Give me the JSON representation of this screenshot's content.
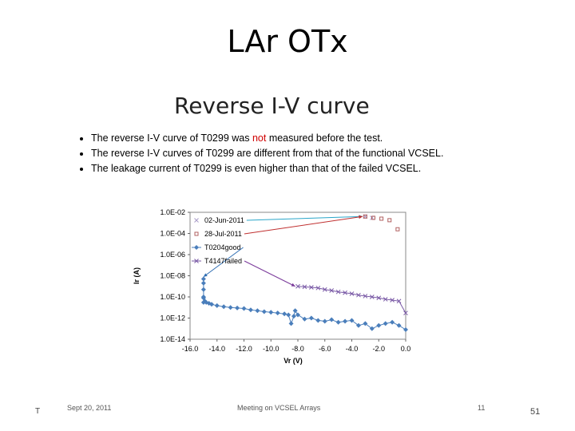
{
  "slide": {
    "title": "LAr OTx",
    "page_number": "51",
    "corner_mark": "T"
  },
  "inner_slide": {
    "title": "Reverse I-V curve",
    "bullets": [
      {
        "before": "The reverse I-V curve of T0299 was ",
        "highlight": "not",
        "after": " measured before the test."
      },
      {
        "before": "The reverse I-V curves of T0299 are different from that of the functional VCSEL.",
        "highlight": "",
        "after": ""
      },
      {
        "before": "The leakage current of T0299 is even higher than that of the failed VCSEL.",
        "highlight": "",
        "after": ""
      }
    ],
    "footer": {
      "date": "Sept 20, 2011",
      "meeting": "Meeting on VCSEL Arrays",
      "page": "11"
    },
    "highlight_color": "#d00000"
  },
  "chart_data": {
    "type": "scatter",
    "xlabel": "Vr (V)",
    "ylabel": "Ir (A)",
    "xlim": [
      -16.0,
      0.0
    ],
    "ylim_log10": [
      -14,
      -2
    ],
    "log_y": true,
    "grid": false,
    "x_ticks": [
      "-16.0",
      "-14.0",
      "-12.0",
      "-10.0",
      "-8.0",
      "-6.0",
      "-4.0",
      "-2.0",
      "0.0"
    ],
    "y_ticks": [
      "1.0E-02",
      "1.0E-04",
      "1.0E-06",
      "1.0E-08",
      "1.0E-10",
      "1.0E-12",
      "1.0E-14"
    ],
    "legend_placement": "top-left",
    "series": [
      {
        "name": "02-Jun-2011",
        "marker": "x",
        "color": "#a89cc8",
        "x": [
          -3.0,
          -2.5
        ],
        "y": [
          0.004,
          0.003
        ]
      },
      {
        "name": "28-Jul-2011",
        "marker": "square",
        "color": "#b06060",
        "x": [
          -3.0,
          -2.4,
          -1.8,
          -1.2,
          -0.6
        ],
        "y": [
          0.004,
          0.003,
          0.0025,
          0.0018,
          0.00025
        ]
      },
      {
        "name": "T0204good",
        "marker": "diamond",
        "color": "#4a7ebb",
        "line": true,
        "x": [
          -15.0,
          -15.0,
          -15.0,
          -15.0,
          -15.0,
          -15.0,
          -14.9,
          -14.8,
          -14.6,
          -14.4,
          -14.0,
          -13.5,
          -13.0,
          -12.5,
          -12.0,
          -11.5,
          -11.0,
          -10.5,
          -10.0,
          -9.5,
          -9.0,
          -8.7,
          -8.5,
          -8.3,
          -8.2,
          -8.0,
          -7.5,
          -7.0,
          -6.5,
          -6.0,
          -5.5,
          -5.0,
          -4.5,
          -4.0,
          -3.5,
          -3.0,
          -2.5,
          -2.0,
          -1.5,
          -1.0,
          -0.5,
          0.0
        ],
        "y": [
          5e-09,
          2e-09,
          5e-10,
          1e-10,
          3e-11,
          8e-11,
          4e-11,
          3e-11,
          2.5e-11,
          2e-11,
          1.5e-11,
          1.2e-11,
          1e-11,
          9e-12,
          8e-12,
          6e-12,
          5e-12,
          4e-12,
          3.5e-12,
          3e-12,
          2.5e-12,
          2e-12,
          3e-13,
          1.5e-12,
          5e-12,
          2e-12,
          8e-13,
          1e-12,
          6e-13,
          5e-13,
          7e-13,
          4e-13,
          5e-13,
          6e-13,
          2e-13,
          3e-13,
          1e-13,
          2e-13,
          3e-13,
          4e-13,
          2e-13,
          8e-14
        ]
      },
      {
        "name": "T4147failed",
        "marker": "x",
        "color": "#7a5aa6",
        "line": true,
        "x": [
          -8.0,
          -7.5,
          -7.0,
          -6.5,
          -6.0,
          -5.5,
          -5.0,
          -4.5,
          -4.0,
          -3.5,
          -3.0,
          -2.5,
          -2.0,
          -1.5,
          -1.0,
          -0.5,
          0.0
        ],
        "y": [
          1e-09,
          9e-10,
          8e-10,
          7e-10,
          5e-10,
          4e-10,
          3e-10,
          2.5e-10,
          2e-10,
          1.5e-10,
          1.2e-10,
          1e-10,
          8e-11,
          6e-11,
          5e-11,
          4e-11,
          3e-12
        ]
      }
    ]
  }
}
